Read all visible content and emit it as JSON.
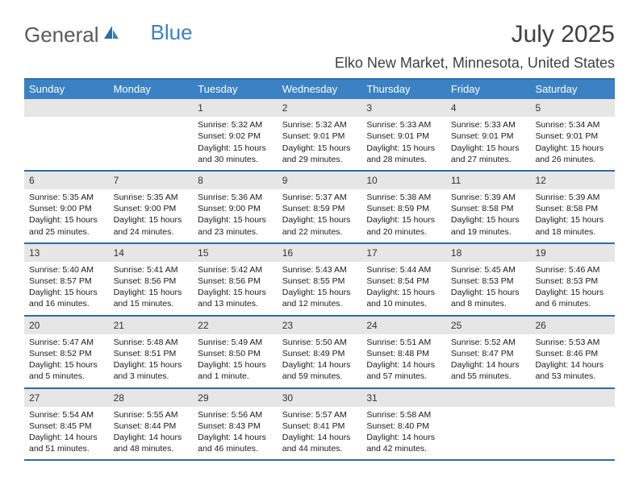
{
  "logo": {
    "general": "General",
    "blue": "Blue"
  },
  "title": "July 2025",
  "location": "Elko New Market, Minnesota, United States",
  "colors": {
    "header_bg": "#3b82c4",
    "border": "#2d6ca8",
    "daynum_bg": "#e6e6e6",
    "text": "#1a1a1a"
  },
  "weekdays": [
    "Sunday",
    "Monday",
    "Tuesday",
    "Wednesday",
    "Thursday",
    "Friday",
    "Saturday"
  ],
  "weeks": [
    [
      {
        "n": "",
        "sunrise": "",
        "sunset": "",
        "daylight": ""
      },
      {
        "n": "",
        "sunrise": "",
        "sunset": "",
        "daylight": ""
      },
      {
        "n": "1",
        "sunrise": "Sunrise: 5:32 AM",
        "sunset": "Sunset: 9:02 PM",
        "daylight": "Daylight: 15 hours and 30 minutes."
      },
      {
        "n": "2",
        "sunrise": "Sunrise: 5:32 AM",
        "sunset": "Sunset: 9:01 PM",
        "daylight": "Daylight: 15 hours and 29 minutes."
      },
      {
        "n": "3",
        "sunrise": "Sunrise: 5:33 AM",
        "sunset": "Sunset: 9:01 PM",
        "daylight": "Daylight: 15 hours and 28 minutes."
      },
      {
        "n": "4",
        "sunrise": "Sunrise: 5:33 AM",
        "sunset": "Sunset: 9:01 PM",
        "daylight": "Daylight: 15 hours and 27 minutes."
      },
      {
        "n": "5",
        "sunrise": "Sunrise: 5:34 AM",
        "sunset": "Sunset: 9:01 PM",
        "daylight": "Daylight: 15 hours and 26 minutes."
      }
    ],
    [
      {
        "n": "6",
        "sunrise": "Sunrise: 5:35 AM",
        "sunset": "Sunset: 9:00 PM",
        "daylight": "Daylight: 15 hours and 25 minutes."
      },
      {
        "n": "7",
        "sunrise": "Sunrise: 5:35 AM",
        "sunset": "Sunset: 9:00 PM",
        "daylight": "Daylight: 15 hours and 24 minutes."
      },
      {
        "n": "8",
        "sunrise": "Sunrise: 5:36 AM",
        "sunset": "Sunset: 9:00 PM",
        "daylight": "Daylight: 15 hours and 23 minutes."
      },
      {
        "n": "9",
        "sunrise": "Sunrise: 5:37 AM",
        "sunset": "Sunset: 8:59 PM",
        "daylight": "Daylight: 15 hours and 22 minutes."
      },
      {
        "n": "10",
        "sunrise": "Sunrise: 5:38 AM",
        "sunset": "Sunset: 8:59 PM",
        "daylight": "Daylight: 15 hours and 20 minutes."
      },
      {
        "n": "11",
        "sunrise": "Sunrise: 5:39 AM",
        "sunset": "Sunset: 8:58 PM",
        "daylight": "Daylight: 15 hours and 19 minutes."
      },
      {
        "n": "12",
        "sunrise": "Sunrise: 5:39 AM",
        "sunset": "Sunset: 8:58 PM",
        "daylight": "Daylight: 15 hours and 18 minutes."
      }
    ],
    [
      {
        "n": "13",
        "sunrise": "Sunrise: 5:40 AM",
        "sunset": "Sunset: 8:57 PM",
        "daylight": "Daylight: 15 hours and 16 minutes."
      },
      {
        "n": "14",
        "sunrise": "Sunrise: 5:41 AM",
        "sunset": "Sunset: 8:56 PM",
        "daylight": "Daylight: 15 hours and 15 minutes."
      },
      {
        "n": "15",
        "sunrise": "Sunrise: 5:42 AM",
        "sunset": "Sunset: 8:56 PM",
        "daylight": "Daylight: 15 hours and 13 minutes."
      },
      {
        "n": "16",
        "sunrise": "Sunrise: 5:43 AM",
        "sunset": "Sunset: 8:55 PM",
        "daylight": "Daylight: 15 hours and 12 minutes."
      },
      {
        "n": "17",
        "sunrise": "Sunrise: 5:44 AM",
        "sunset": "Sunset: 8:54 PM",
        "daylight": "Daylight: 15 hours and 10 minutes."
      },
      {
        "n": "18",
        "sunrise": "Sunrise: 5:45 AM",
        "sunset": "Sunset: 8:53 PM",
        "daylight": "Daylight: 15 hours and 8 minutes."
      },
      {
        "n": "19",
        "sunrise": "Sunrise: 5:46 AM",
        "sunset": "Sunset: 8:53 PM",
        "daylight": "Daylight: 15 hours and 6 minutes."
      }
    ],
    [
      {
        "n": "20",
        "sunrise": "Sunrise: 5:47 AM",
        "sunset": "Sunset: 8:52 PM",
        "daylight": "Daylight: 15 hours and 5 minutes."
      },
      {
        "n": "21",
        "sunrise": "Sunrise: 5:48 AM",
        "sunset": "Sunset: 8:51 PM",
        "daylight": "Daylight: 15 hours and 3 minutes."
      },
      {
        "n": "22",
        "sunrise": "Sunrise: 5:49 AM",
        "sunset": "Sunset: 8:50 PM",
        "daylight": "Daylight: 15 hours and 1 minute."
      },
      {
        "n": "23",
        "sunrise": "Sunrise: 5:50 AM",
        "sunset": "Sunset: 8:49 PM",
        "daylight": "Daylight: 14 hours and 59 minutes."
      },
      {
        "n": "24",
        "sunrise": "Sunrise: 5:51 AM",
        "sunset": "Sunset: 8:48 PM",
        "daylight": "Daylight: 14 hours and 57 minutes."
      },
      {
        "n": "25",
        "sunrise": "Sunrise: 5:52 AM",
        "sunset": "Sunset: 8:47 PM",
        "daylight": "Daylight: 14 hours and 55 minutes."
      },
      {
        "n": "26",
        "sunrise": "Sunrise: 5:53 AM",
        "sunset": "Sunset: 8:46 PM",
        "daylight": "Daylight: 14 hours and 53 minutes."
      }
    ],
    [
      {
        "n": "27",
        "sunrise": "Sunrise: 5:54 AM",
        "sunset": "Sunset: 8:45 PM",
        "daylight": "Daylight: 14 hours and 51 minutes."
      },
      {
        "n": "28",
        "sunrise": "Sunrise: 5:55 AM",
        "sunset": "Sunset: 8:44 PM",
        "daylight": "Daylight: 14 hours and 48 minutes."
      },
      {
        "n": "29",
        "sunrise": "Sunrise: 5:56 AM",
        "sunset": "Sunset: 8:43 PM",
        "daylight": "Daylight: 14 hours and 46 minutes."
      },
      {
        "n": "30",
        "sunrise": "Sunrise: 5:57 AM",
        "sunset": "Sunset: 8:41 PM",
        "daylight": "Daylight: 14 hours and 44 minutes."
      },
      {
        "n": "31",
        "sunrise": "Sunrise: 5:58 AM",
        "sunset": "Sunset: 8:40 PM",
        "daylight": "Daylight: 14 hours and 42 minutes."
      },
      {
        "n": "",
        "sunrise": "",
        "sunset": "",
        "daylight": ""
      },
      {
        "n": "",
        "sunrise": "",
        "sunset": "",
        "daylight": ""
      }
    ]
  ]
}
